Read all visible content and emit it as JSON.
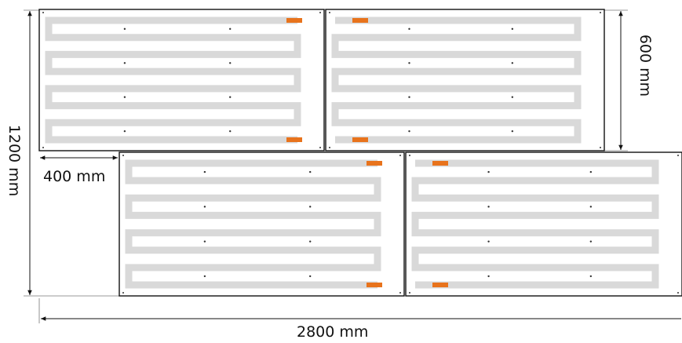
{
  "dimensions": {
    "total_height": "1200 mm",
    "panel_height": "600 mm",
    "offset": "400 mm",
    "total_width": "2800 mm"
  },
  "colors": {
    "outline": "#111111",
    "trace": "#d9d9d9",
    "pad": "#e8731c",
    "background": "#ffffff"
  },
  "panels": [
    {
      "name": "panel-top-left",
      "pad_side": "right"
    },
    {
      "name": "panel-top-right",
      "pad_side": "left"
    },
    {
      "name": "panel-bottom-left",
      "pad_side": "right"
    },
    {
      "name": "panel-bottom-right",
      "pad_side": "left"
    }
  ]
}
